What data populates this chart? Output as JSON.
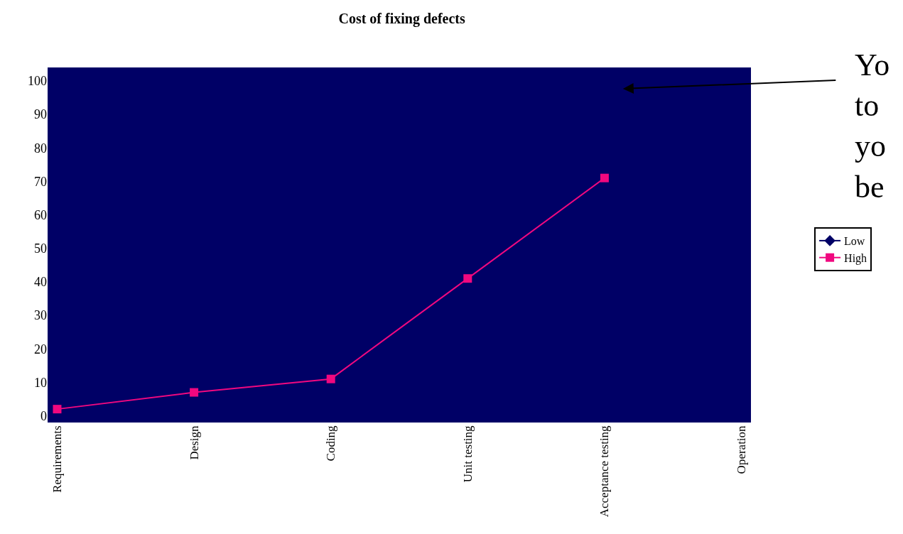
{
  "chart_data": {
    "type": "line",
    "title": "Cost of fixing defects",
    "categories": [
      "Requirements",
      "Design",
      "Coding",
      "Unit testing",
      "Acceptance testing",
      "Operation"
    ],
    "series": [
      {
        "name": "Low",
        "color": "#000066",
        "marker": "diamond",
        "values": [
          null,
          null,
          null,
          null,
          null,
          null
        ]
      },
      {
        "name": "High",
        "color": "#f0087f",
        "marker": "square",
        "values": [
          2,
          7,
          11,
          41,
          71,
          null
        ]
      }
    ],
    "ylim": [
      -2,
      104
    ],
    "yticks": [
      0,
      10,
      20,
      30,
      40,
      50,
      60,
      70,
      80,
      90,
      100
    ],
    "grid": false,
    "legend": "right",
    "annotations": [
      "Yo\nto\nyo\nbe"
    ]
  }
}
